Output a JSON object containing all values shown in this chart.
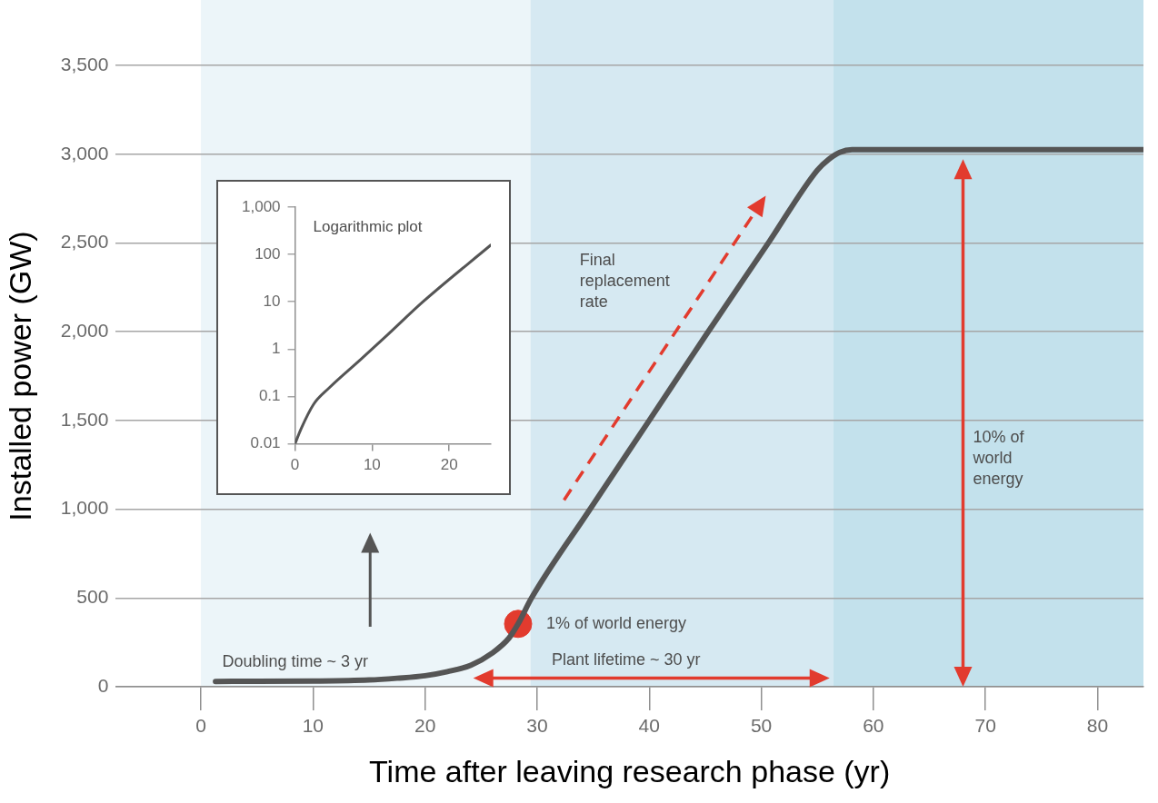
{
  "chart_data": [
    {
      "type": "line",
      "xlabel": "Time after leaving research phase (yr)",
      "ylabel": "Installed power (GW)",
      "xlim": [
        -7.6,
        84.1
      ],
      "ylim": [
        0,
        3500
      ],
      "xticks": [
        0,
        10,
        20,
        30,
        40,
        50,
        60,
        70,
        80
      ],
      "yticks": [
        0,
        500,
        {
          "value": 1000,
          "label": "1,000"
        },
        {
          "value": 1500,
          "label": "1,500"
        },
        {
          "value": 2000,
          "label": "2,000"
        },
        {
          "value": 2500,
          "label": "2,500"
        },
        {
          "value": 3000,
          "label": "3,000"
        },
        {
          "value": 3500,
          "label": "3,500"
        }
      ],
      "grid": "y",
      "legend": false,
      "series": [
        {
          "color": "#555555",
          "marker": "none",
          "x": [
            1.3,
            10,
            15,
            17.5,
            20,
            22,
            24.1,
            26,
            27.5,
            28.3,
            29.5,
            34.6,
            40,
            45,
            50.7,
            55,
            56,
            57,
            58.1,
            84.1
          ],
          "values": [
            30,
            32,
            38,
            48,
            62,
            85,
            122,
            190,
            275,
            354,
            500,
            989,
            1500,
            1975,
            2507,
            2910,
            2970,
            3010,
            3025,
            3025
          ]
        },
        {
          "type": "scatter",
          "color": "#e23b2e",
          "marker": "circle",
          "x": [
            28.3
          ],
          "values": [
            354
          ]
        }
      ],
      "bands": [
        {
          "axis": "x",
          "from": 0,
          "to": 29.4,
          "color": "#ecf5f9"
        },
        {
          "axis": "x",
          "from": 29.4,
          "to": 56.4,
          "color": "#d6e9f2"
        },
        {
          "axis": "x",
          "from": 56.4,
          "to": 84.1,
          "color": "#c3e1ec"
        }
      ],
      "annotations": [
        "Doubling time ~ 3 yr",
        {
          "text": "1% of world energy",
          "x": 28.3,
          "y": 354
        },
        "Plant lifetime ~ 30 yr",
        "Final replacement rate",
        "10% of world energy"
      ]
    },
    {
      "type": "line",
      "title": "Logarithmic plot",
      "log": true,
      "color": "#555555",
      "marker": "none",
      "x": [
        0,
        0.8,
        2.4,
        4.4,
        8.5,
        12,
        16.6,
        25.4
      ],
      "values": [
        0.01,
        0.021,
        0.068,
        0.15,
        0.6,
        2,
        10,
        158
      ],
      "xlim": [
        0,
        25.4
      ],
      "ylim": [
        0.01,
        1000
      ],
      "xticks": [
        0,
        10,
        20
      ],
      "yticks": [
        0.01,
        0.1,
        1,
        10,
        100,
        {
          "value": 1000,
          "label": "1,000"
        }
      ],
      "grid": false,
      "legend": false
    }
  ]
}
